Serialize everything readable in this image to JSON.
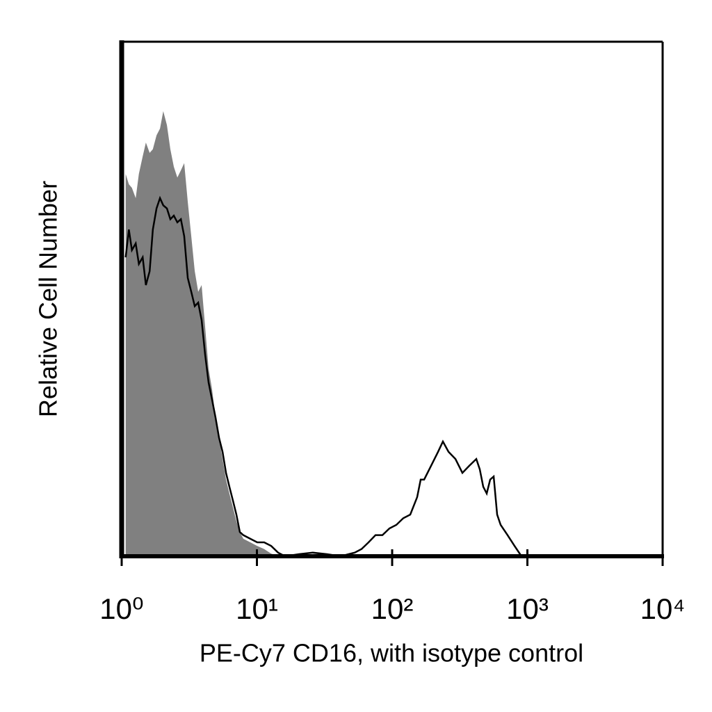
{
  "chart_data": {
    "type": "histogram-overlay",
    "x_label": "PE-Cy7 CD16, with isotype control",
    "y_label": "Relative Cell Number",
    "xscale": "log",
    "xlim": [
      1,
      10000
    ],
    "ylim": [
      0,
      100
    ],
    "xticks": [
      {
        "value": 1,
        "label": "10⁰"
      },
      {
        "value": 10,
        "label": "10¹"
      },
      {
        "value": 100,
        "label": "10²"
      },
      {
        "value": 1000,
        "label": "10³"
      },
      {
        "value": 10000,
        "label": "10⁴"
      }
    ],
    "series": [
      {
        "name": "isotype control",
        "style": "filled",
        "color": "#808080",
        "x": [
          1.07,
          1.13,
          1.19,
          1.27,
          1.34,
          1.43,
          1.51,
          1.61,
          1.7,
          1.81,
          1.92,
          2.03,
          2.16,
          2.29,
          2.43,
          2.58,
          2.74,
          2.9,
          3.08,
          3.27,
          3.47,
          3.68,
          3.9,
          4.14,
          4.39,
          4.66,
          4.94,
          5.25,
          5.57,
          5.91,
          6.26,
          6.65,
          7.05,
          7.48,
          7.94,
          8.94,
          10.06,
          11.32,
          12.75,
          14.35
        ],
        "values": [
          74.3,
          72.3,
          71.6,
          69.6,
          74.3,
          77.7,
          80.4,
          78.4,
          79.1,
          81.8,
          83.1,
          86.5,
          83.8,
          79.1,
          75.7,
          73.6,
          75,
          76.4,
          68.9,
          62.2,
          55.4,
          51.4,
          52.7,
          44.6,
          36.5,
          32.4,
          27,
          23,
          18.9,
          14.9,
          12.2,
          9.5,
          6.8,
          4.7,
          3.4,
          2.7,
          2,
          1.4,
          0.5,
          0.1
        ]
      },
      {
        "name": "CD16",
        "style": "outline",
        "color": "#000000",
        "x": [
          1.07,
          1.13,
          1.19,
          1.27,
          1.34,
          1.43,
          1.51,
          1.61,
          1.7,
          1.81,
          1.92,
          2.03,
          2.16,
          2.29,
          2.43,
          2.58,
          2.74,
          2.9,
          3.08,
          3.27,
          3.47,
          3.68,
          3.9,
          4.14,
          4.39,
          4.66,
          4.94,
          5.25,
          5.57,
          5.91,
          6.26,
          6.65,
          7.05,
          7.48,
          7.94,
          8.94,
          10.06,
          11.32,
          12.75,
          14.35,
          16.15,
          20.5,
          25.9,
          32.9,
          41.6,
          52.8,
          59.4,
          66.9,
          75.3,
          84.7,
          95.4,
          107.4,
          120.9,
          136.1,
          153.1,
          162.5,
          172.4,
          194.1,
          218.5,
          237.3,
          261,
          293.8,
          330.7,
          372.2,
          419,
          444.5,
          471.6,
          500.3,
          530.8,
          563.2,
          597.5,
          633.9,
          713.8,
          803.6,
          904.4
        ],
        "values": [
          58.1,
          63.5,
          59.5,
          60.8,
          56.8,
          58.1,
          52.7,
          55.4,
          63.5,
          67.6,
          69.6,
          68.2,
          67.6,
          65.5,
          66.2,
          64.9,
          65.5,
          62.2,
          54.1,
          51.4,
          48.6,
          49.3,
          45.9,
          39.2,
          33.8,
          30.4,
          27,
          23,
          20.3,
          16.2,
          13.5,
          10.8,
          8.1,
          4.7,
          4.1,
          3.4,
          2.7,
          2.7,
          2,
          0.7,
          0,
          0.4,
          0.7,
          0.4,
          0,
          0.7,
          1.4,
          2.7,
          4.1,
          4.1,
          5.4,
          6.1,
          7.4,
          8.1,
          11.5,
          14.9,
          14.9,
          17.6,
          20.3,
          22.3,
          20.3,
          18.9,
          16.2,
          17.6,
          18.9,
          16.9,
          13.5,
          12.2,
          14.9,
          15.5,
          8.1,
          6.1,
          4.1,
          2,
          0
        ]
      }
    ]
  }
}
